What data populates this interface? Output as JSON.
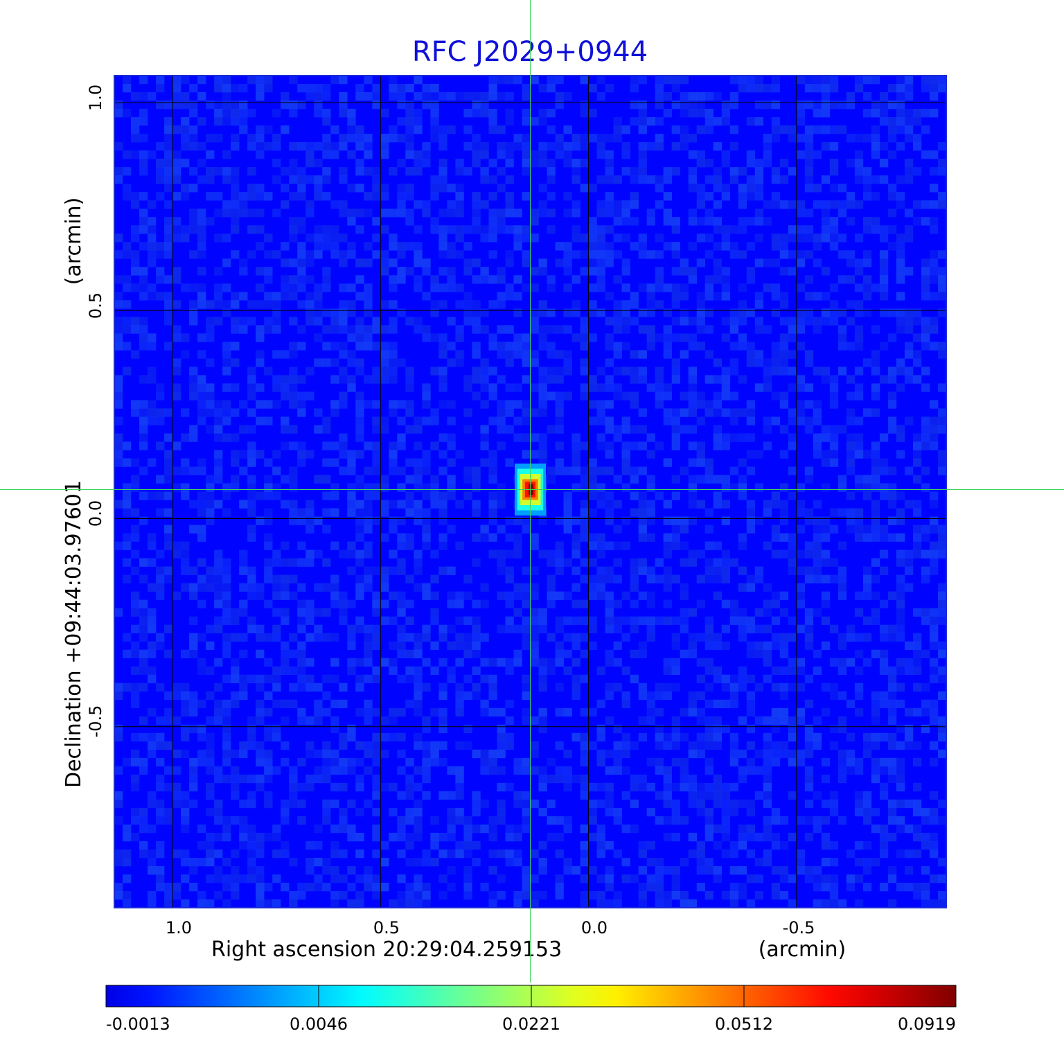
{
  "chart_data": {
    "type": "heatmap",
    "title": "RFC J2029+0944",
    "xlabel": "Right ascension  20:29:04.259153",
    "xunit": "(arcmin)",
    "ylabel": "Declination  +09:44:03.97601",
    "yunit": "(arcmin)",
    "x_ticks": [
      "1.0",
      "0.5",
      "0.0",
      "-0.5"
    ],
    "y_ticks": [
      "1.0",
      "0.5",
      "0.0",
      "-0.5"
    ],
    "xlim": [
      1.14,
      -0.86
    ],
    "ylim": [
      -0.935,
      1.065
    ],
    "grid": true,
    "crosshair": {
      "x": 0.14,
      "y": 0.07
    },
    "source": {
      "x": 0.14,
      "y": 0.07,
      "peak": 0.0919
    },
    "background_level": 0.0005,
    "colorbar": {
      "colormap": "jet",
      "ticks": [
        "-0.0013",
        "0.0046",
        "0.0221",
        "0.0512",
        "0.0919"
      ],
      "min": -0.0013,
      "max": 0.0919
    }
  },
  "colors": {
    "title": "#1010d8",
    "grid": "#000000",
    "crosshair": "#3dd65a",
    "frame": "#1a2bd6"
  }
}
